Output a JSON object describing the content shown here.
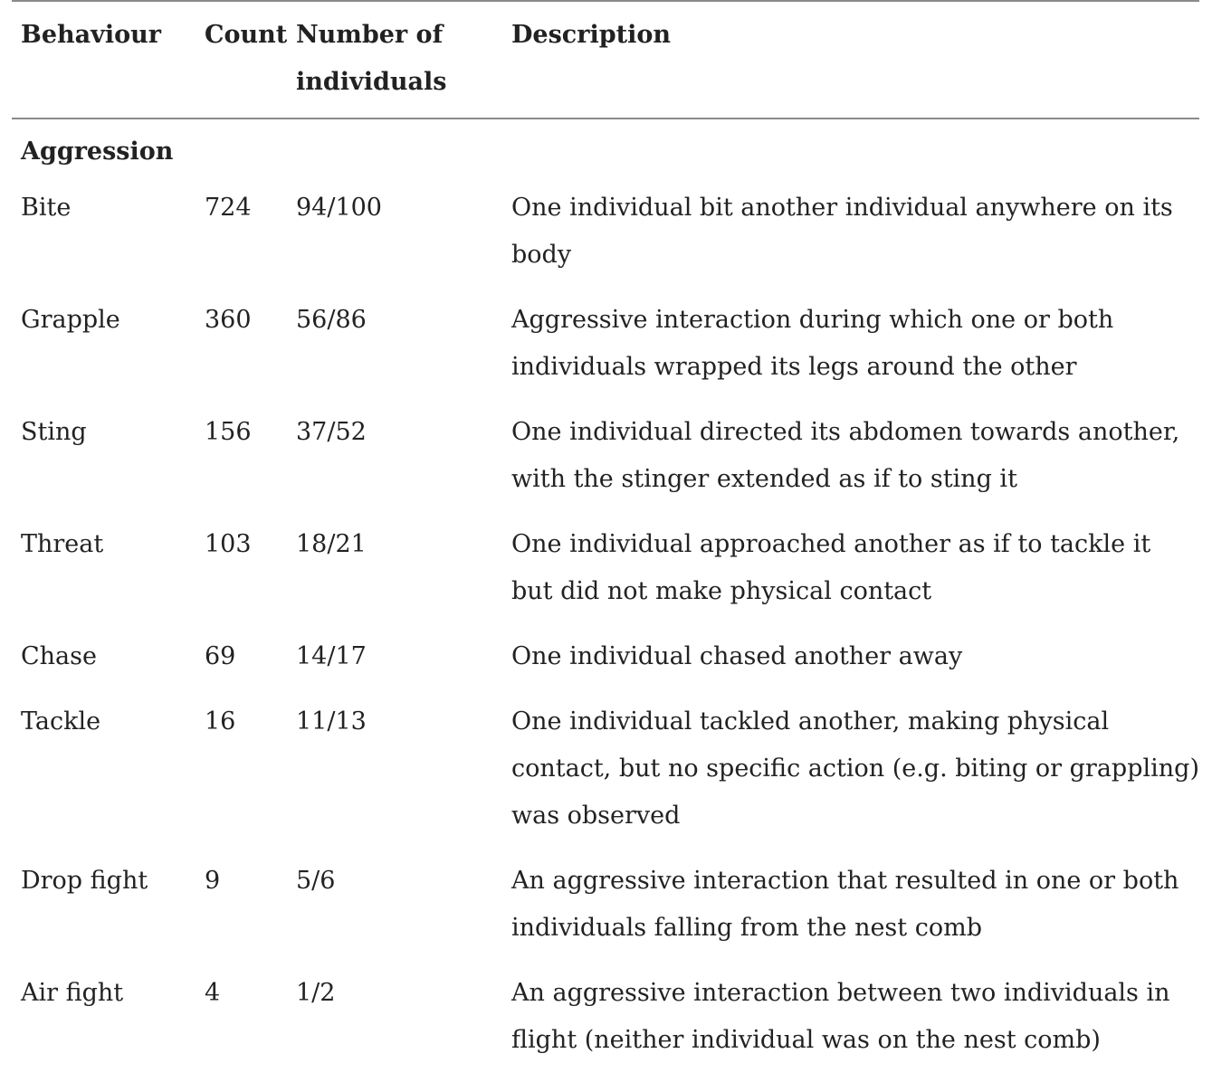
{
  "table": {
    "headers": {
      "behaviour": "Behaviour",
      "count": "Count",
      "individuals": "Number of individuals",
      "description": "Description"
    },
    "section": "Aggression",
    "rows": [
      {
        "behaviour": "Bite",
        "count": "724",
        "individuals": "94/100",
        "description": "One individual bit another individual anywhere on its body"
      },
      {
        "behaviour": "Grapple",
        "count": "360",
        "individuals": "56/86",
        "description": "Aggressive interaction during which one or both individuals wrapped its legs around the other"
      },
      {
        "behaviour": "Sting",
        "count": "156",
        "individuals": "37/52",
        "description": "One individual directed its abdomen towards another, with the stinger extended as if to sting it"
      },
      {
        "behaviour": "Threat",
        "count": "103",
        "individuals": "18/21",
        "description": "One individual approached another as if to tackle it but did not make physical contact"
      },
      {
        "behaviour": "Chase",
        "count": "69",
        "individuals": "14/17",
        "description": "One individual chased another away"
      },
      {
        "behaviour": "Tackle",
        "count": "16",
        "individuals": "11/13",
        "description": "One individual tackled another, making physical contact, but no specific action (e.g. biting or grappling) was observed"
      },
      {
        "behaviour": "Drop fight",
        "count": "9",
        "individuals": "5/6",
        "description": "An aggressive interaction that resulted in one or both individuals falling from the nest comb"
      },
      {
        "behaviour": "Air fight",
        "count": "4",
        "individuals": "1/2",
        "description": "An aggressive interaction between two individuals in flight (neither individual was on the nest comb)"
      }
    ]
  }
}
